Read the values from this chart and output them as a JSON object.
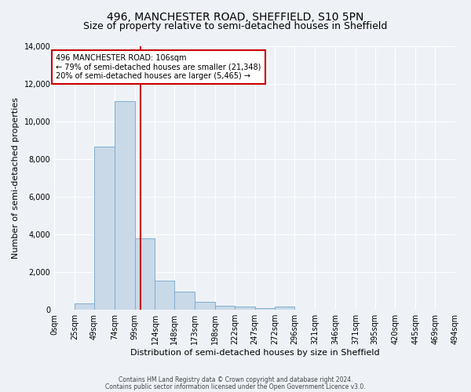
{
  "title1": "496, MANCHESTER ROAD, SHEFFIELD, S10 5PN",
  "title2": "Size of property relative to semi-detached houses in Sheffield",
  "xlabel": "Distribution of semi-detached houses by size in Sheffield",
  "ylabel": "Number of semi-detached properties",
  "bin_edges": [
    0,
    25,
    49,
    74,
    99,
    124,
    148,
    173,
    198,
    222,
    247,
    272,
    296,
    321,
    346,
    371,
    395,
    420,
    445,
    469,
    494
  ],
  "bar_heights": [
    0,
    350,
    8650,
    11100,
    3800,
    1550,
    950,
    400,
    200,
    150,
    100,
    150,
    0,
    0,
    0,
    0,
    0,
    0,
    0,
    0
  ],
  "bar_color": "#c9d9e8",
  "bar_edge_color": "#7fafcf",
  "property_size": 106,
  "red_line_color": "#cc0000",
  "annotation_line1": "496 MANCHESTER ROAD: 106sqm",
  "annotation_line2": "← 79% of semi-detached houses are smaller (21,348)",
  "annotation_line3": "20% of semi-detached houses are larger (5,465) →",
  "annotation_box_color": "white",
  "annotation_box_edge": "#cc0000",
  "ylim": [
    0,
    14000
  ],
  "yticks": [
    0,
    2000,
    4000,
    6000,
    8000,
    10000,
    12000,
    14000
  ],
  "x_tick_labels": [
    "0sqm",
    "25sqm",
    "49sqm",
    "74sqm",
    "99sqm",
    "124sqm",
    "148sqm",
    "173sqm",
    "198sqm",
    "222sqm",
    "247sqm",
    "272sqm",
    "296sqm",
    "321sqm",
    "346sqm",
    "371sqm",
    "395sqm",
    "420sqm",
    "445sqm",
    "469sqm",
    "494sqm"
  ],
  "footer_line1": "Contains HM Land Registry data © Crown copyright and database right 2024.",
  "footer_line2": "Contains public sector information licensed under the Open Government Licence v3.0.",
  "background_color": "#eef2f7",
  "grid_color": "#ffffff",
  "title1_fontsize": 10,
  "title2_fontsize": 9
}
